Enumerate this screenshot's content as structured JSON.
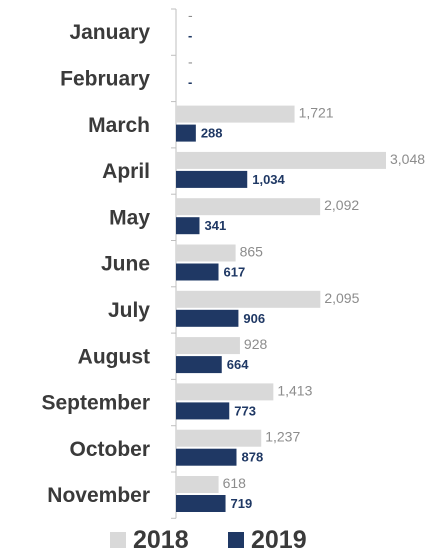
{
  "chart_data": {
    "type": "bar",
    "orientation": "horizontal",
    "categories": [
      "January",
      "February",
      "March",
      "April",
      "May",
      "June",
      "July",
      "August",
      "September",
      "October",
      "November"
    ],
    "series": [
      {
        "name": "2018",
        "color": "#d9d9d9",
        "values": [
          0,
          0,
          1721,
          3048,
          2092,
          865,
          2095,
          928,
          1413,
          1237,
          618
        ],
        "labels": [
          "-",
          "-",
          "1,721",
          "3,048",
          "2,092",
          "865",
          "2,095",
          "928",
          "1,413",
          "1,237",
          "618"
        ]
      },
      {
        "name": "2019",
        "color": "#1f3864",
        "values": [
          0,
          0,
          288,
          1034,
          341,
          617,
          906,
          664,
          773,
          878,
          719
        ],
        "labels": [
          "-",
          "-",
          "288",
          "1,034",
          "341",
          "617",
          "906",
          "664",
          "773",
          "878",
          "719"
        ]
      }
    ],
    "xlim": [
      0,
      3048
    ],
    "grid": false,
    "legend": "bottom"
  }
}
